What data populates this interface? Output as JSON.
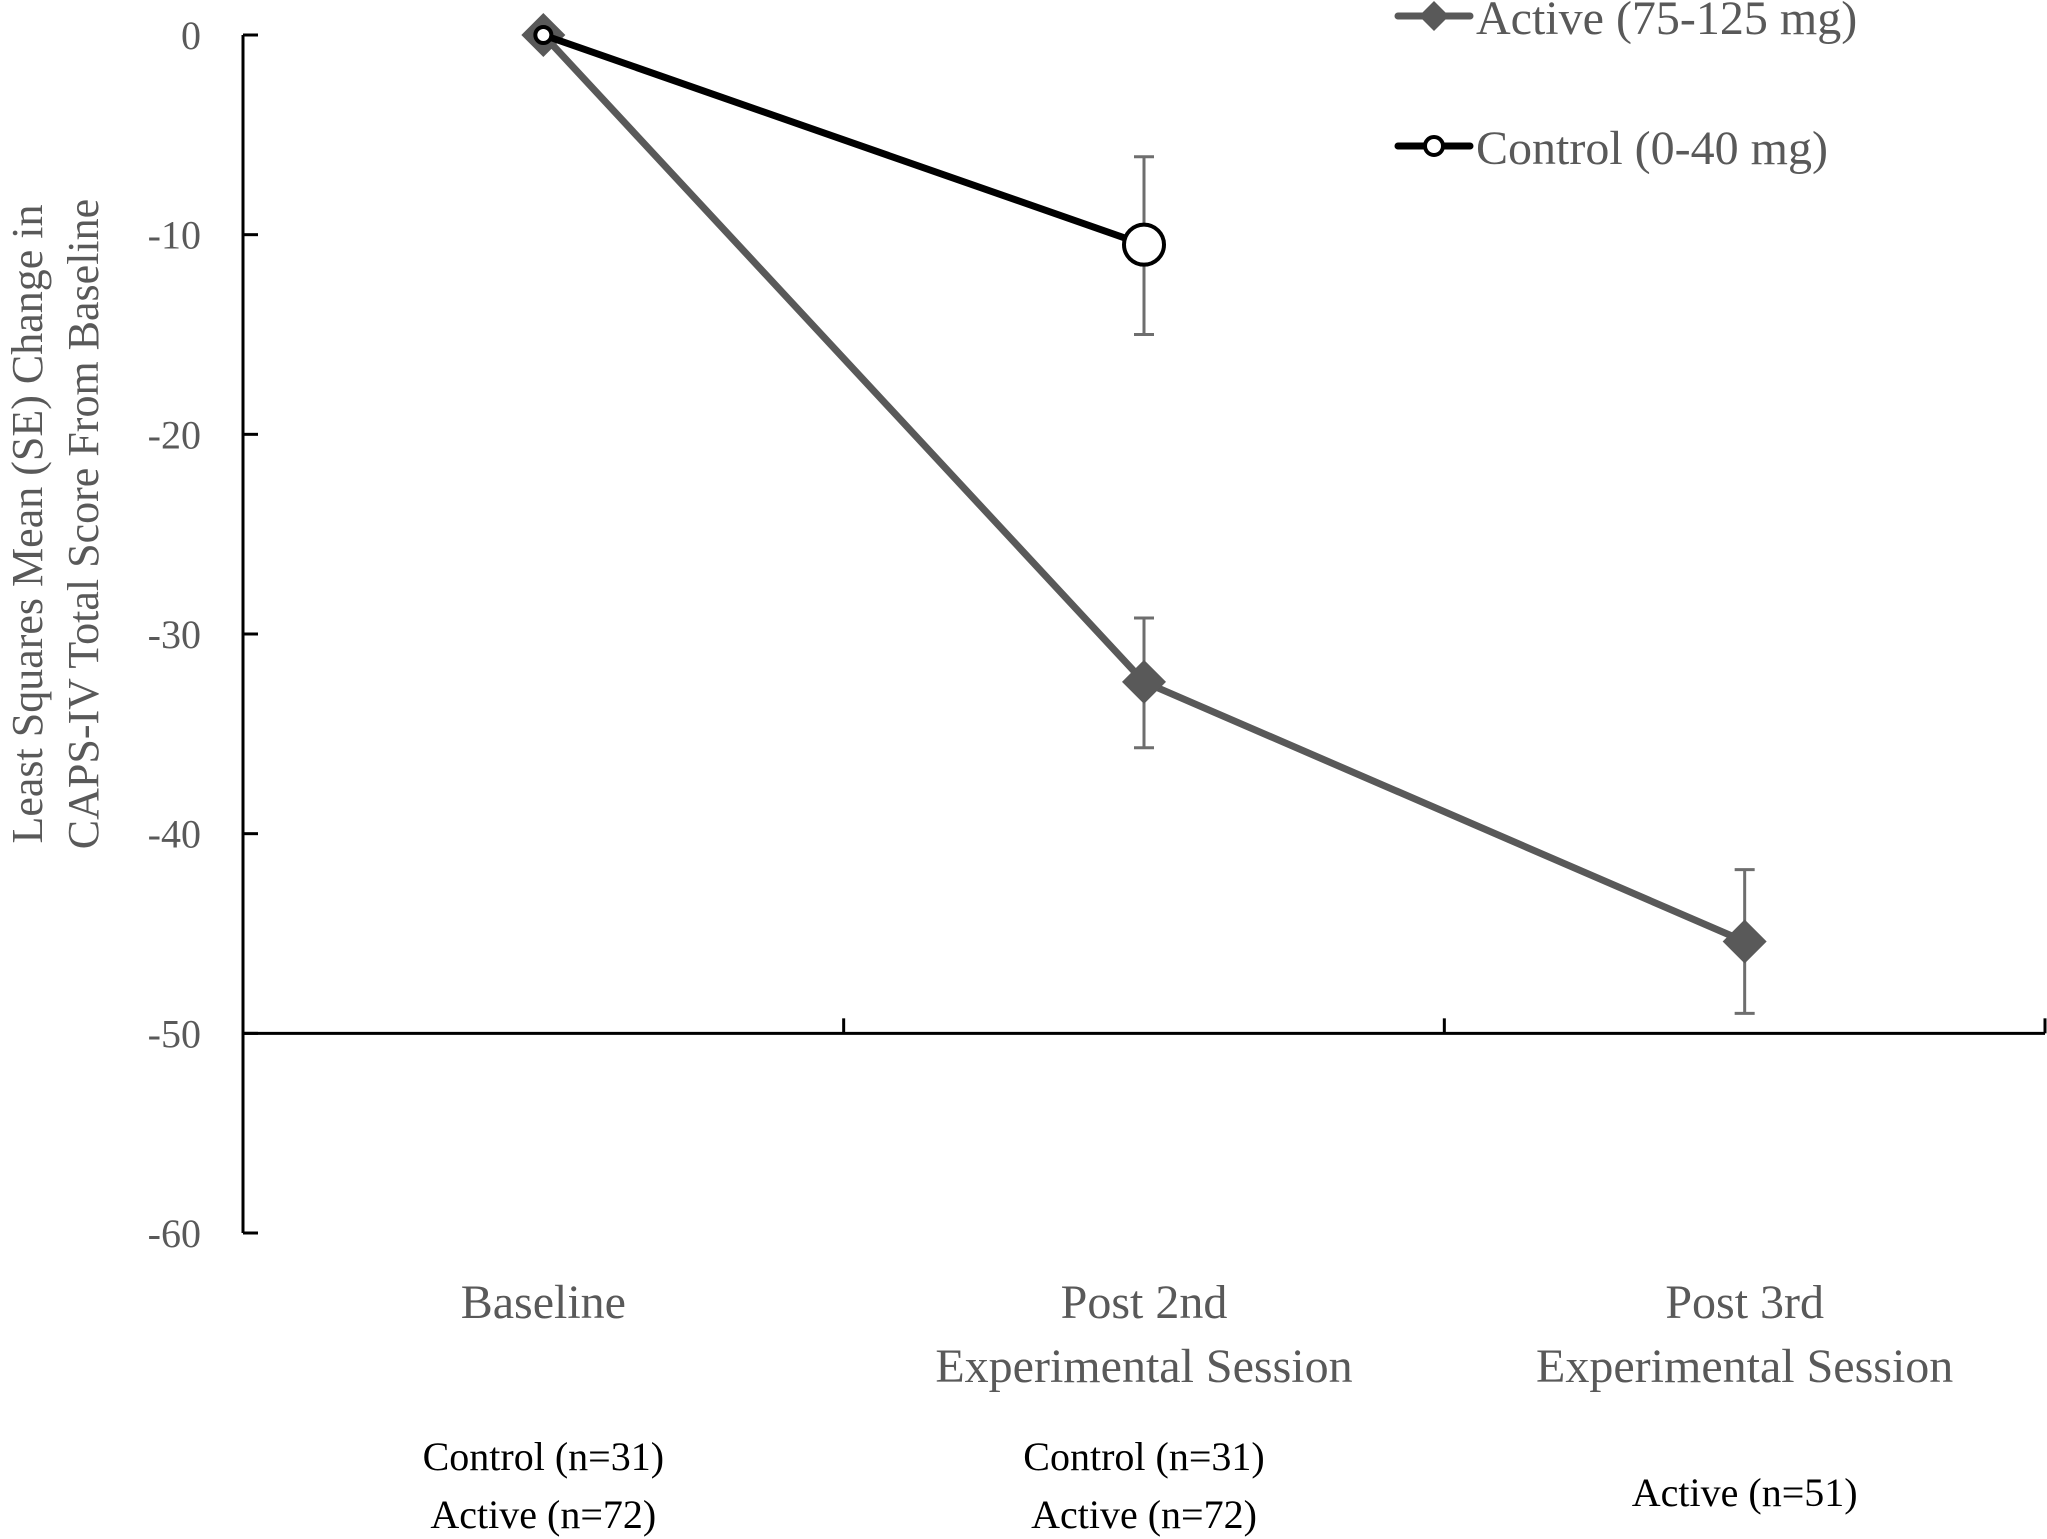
{
  "chart_data": {
    "type": "line",
    "title": "",
    "xlabel": "",
    "ylabel": "Least Squares Mean (SE) Change in CAPS-IV Total Score From Baseline",
    "ylabel_lines": [
      "Least Squares Mean (SE) Change in",
      "CAPS-IV Total Score From Baseline"
    ],
    "ylim": [
      -60,
      0
    ],
    "yticks": [
      0,
      -10,
      -20,
      -30,
      -40,
      -50,
      -60
    ],
    "ytick_labels": [
      "0",
      "-10",
      "-20",
      "-30",
      "-40",
      "-50",
      "-60"
    ],
    "x_axis_crossing": -50,
    "grid": false,
    "legend_position": "top-right",
    "categories": [
      {
        "lines": [
          "Baseline"
        ],
        "n_lines": [
          "Control (n=31)",
          "Active (n=72)"
        ]
      },
      {
        "lines": [
          "Post 2nd",
          "Experimental Session"
        ],
        "n_lines": [
          "Control (n=31)",
          "Active (n=72)"
        ]
      },
      {
        "lines": [
          "Post 3rd",
          "Experimental Session"
        ],
        "n_lines": [
          "Active (n=51)"
        ]
      }
    ],
    "series": [
      {
        "name": "Active (75-125 mg)",
        "marker": "diamond",
        "color": "#595959",
        "values": [
          0,
          -32.4,
          -45.4
        ],
        "error_low": [
          null,
          -35.7,
          -49.0
        ],
        "error_high": [
          null,
          -29.2,
          -41.8
        ]
      },
      {
        "name": "Control (0-40 mg)",
        "marker": "open-circle",
        "color": "#000000",
        "values": [
          0,
          -10.5,
          null
        ],
        "error_low": [
          null,
          -15.0,
          null
        ],
        "error_high": [
          null,
          -6.1,
          null
        ]
      }
    ]
  }
}
